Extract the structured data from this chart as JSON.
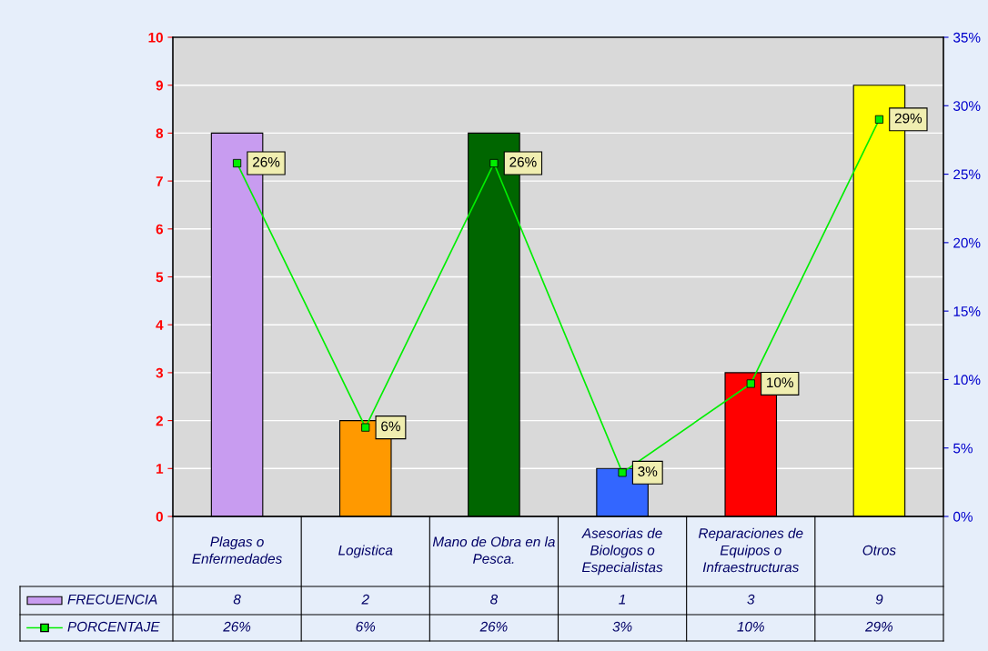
{
  "chart_data": {
    "type": "bar",
    "categories": [
      "Plagas o Enfermedades",
      "Logistica",
      "Mano de Obra en la Pesca.",
      "Asesorias de Biologos o Especialistas",
      "Reparaciones de Equipos o Infraestructuras",
      "Otros"
    ],
    "series": [
      {
        "name": "FRECUENCIA",
        "color": "#c89cf0",
        "colors": [
          "#c89cf0",
          "#ff9900",
          "#006600",
          "#3366ff",
          "#ff0000",
          "#ffff00"
        ],
        "values": [
          8,
          2,
          8,
          1,
          3,
          9
        ],
        "value_labels": [
          "8",
          "2",
          "8",
          "1",
          "3",
          "9"
        ]
      },
      {
        "name": "PORCENTAJE",
        "type": "line",
        "axis": "y2",
        "color": "#00ee00",
        "marker": "square",
        "values": [
          25.8,
          6.5,
          25.8,
          3.2,
          9.7,
          29.0
        ],
        "value_labels": [
          "26%",
          "6%",
          "26%",
          "3%",
          "10%",
          "29%"
        ]
      }
    ],
    "ylim": [
      0,
      10
    ],
    "yticks": [
      0,
      1,
      2,
      3,
      4,
      5,
      6,
      7,
      8,
      9,
      10
    ],
    "y2lim": [
      0,
      35
    ],
    "y2ticks": [
      {
        "value": 0,
        "label": "0%"
      },
      {
        "value": 5,
        "label": "5%"
      },
      {
        "value": 10,
        "label": "10%"
      },
      {
        "value": 15,
        "label": "15%"
      },
      {
        "value": 20,
        "label": "20%"
      },
      {
        "value": 25,
        "label": "25%"
      },
      {
        "value": 30,
        "label": "30%"
      },
      {
        "value": 35,
        "label": "35%"
      }
    ],
    "grid": "y",
    "legend": "bottom"
  }
}
